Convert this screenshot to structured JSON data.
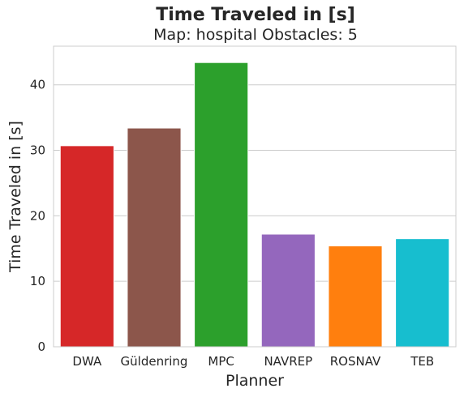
{
  "chart_data": {
    "type": "bar",
    "title": "Time Traveled in [s]",
    "subtitle": "Map: hospital Obstacles: 5",
    "xlabel": "Planner",
    "ylabel": "Time Traveled in [s]",
    "categories": [
      "DWA",
      "Güldenring",
      "MPC",
      "NAVREP",
      "ROSNAV",
      "TEB"
    ],
    "values": [
      30.7,
      33.4,
      43.4,
      17.2,
      15.4,
      16.5
    ],
    "colors": [
      "#d62728",
      "#8c564b",
      "#2ca02c",
      "#9467bd",
      "#ff7f0e",
      "#17becf"
    ],
    "ylim": [
      0,
      45.9
    ],
    "yticks": [
      0,
      10,
      20,
      30,
      40
    ],
    "grid": true,
    "legend": "none"
  }
}
